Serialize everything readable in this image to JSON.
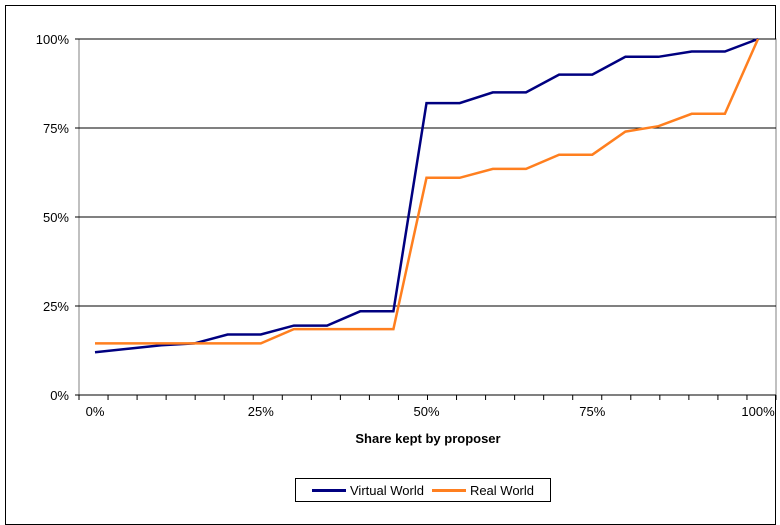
{
  "chart_data": {
    "type": "line",
    "xlabel": "Share kept by proposer",
    "ylabel": "",
    "x_ticks": [
      "0%",
      "25%",
      "50%",
      "75%",
      "100%"
    ],
    "y_ticks": [
      "0%",
      "25%",
      "50%",
      "75%",
      "100%"
    ],
    "xlim": [
      0,
      100
    ],
    "ylim": [
      0,
      100
    ],
    "grid": "horizontal",
    "legend_position": "bottom",
    "x": [
      0,
      5,
      10,
      15,
      20,
      25,
      30,
      35,
      40,
      45,
      50,
      55,
      60,
      65,
      70,
      75,
      80,
      85,
      90,
      95,
      100
    ],
    "series": [
      {
        "name": "Virtual World",
        "color": "#000080",
        "values": [
          12,
          13,
          14,
          14.5,
          17,
          17,
          19.5,
          19.5,
          23.5,
          23.5,
          82,
          82,
          85,
          85,
          90,
          90,
          95,
          95,
          96.5,
          96.5,
          100
        ]
      },
      {
        "name": "Real World",
        "color": "#FF7F1F",
        "values": [
          14.5,
          14.5,
          14.5,
          14.5,
          14.5,
          14.5,
          18.5,
          18.5,
          18.5,
          18.5,
          61,
          61,
          63.5,
          63.5,
          67.5,
          67.5,
          74,
          75.5,
          79,
          79,
          100
        ]
      }
    ]
  }
}
